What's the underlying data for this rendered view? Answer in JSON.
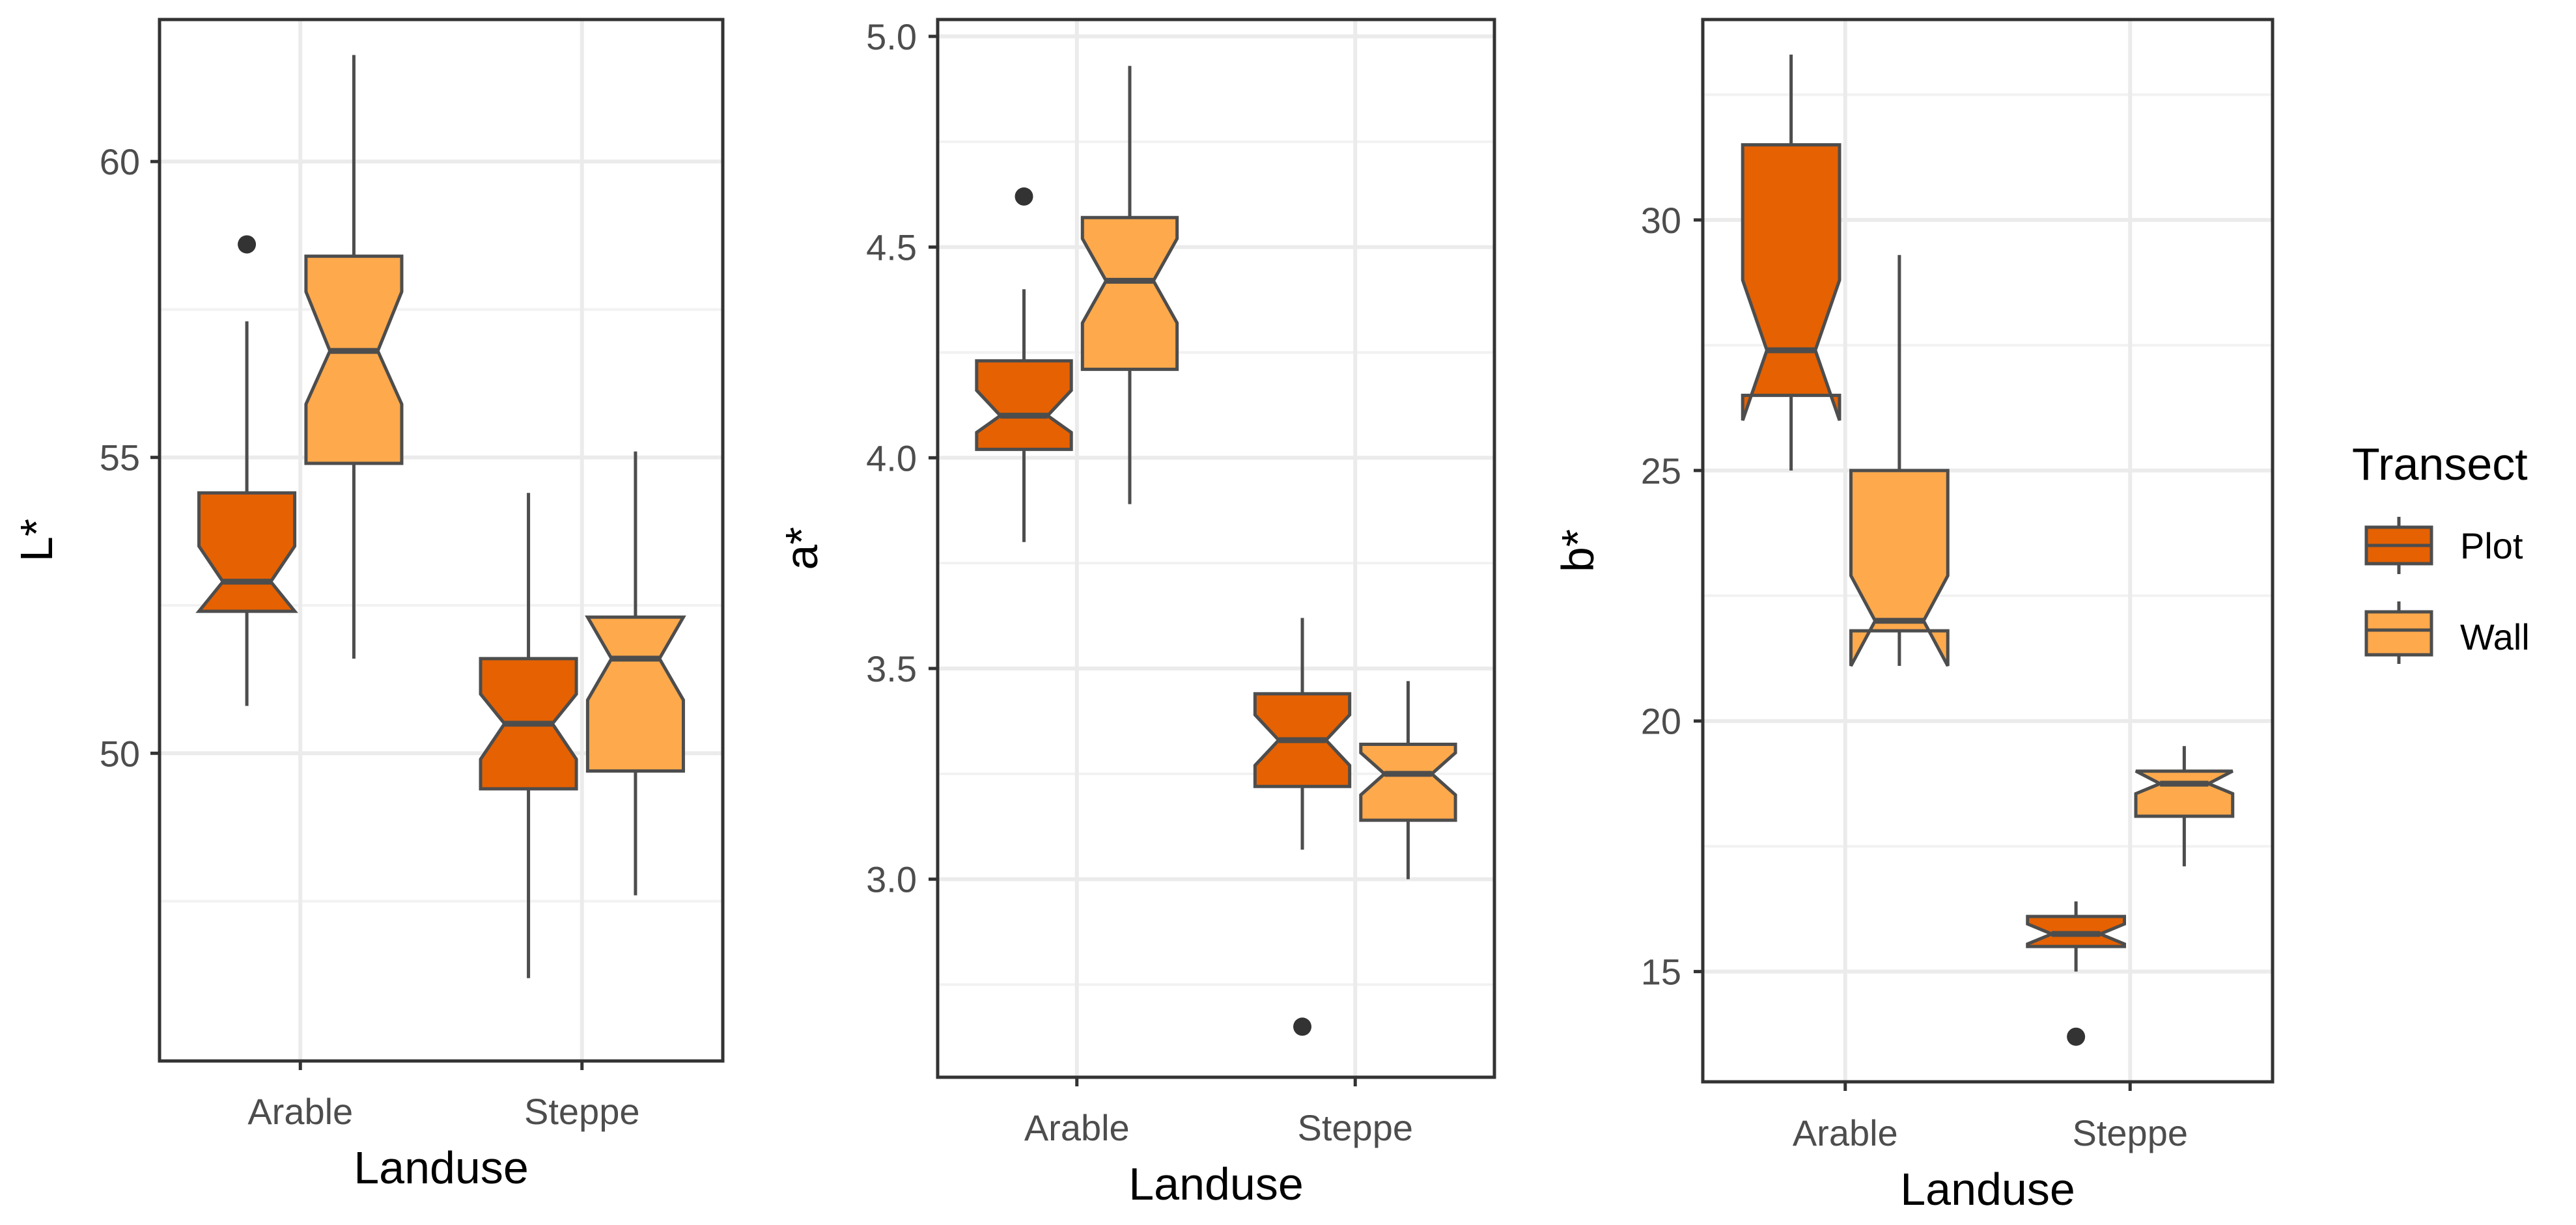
{
  "chart_data": [
    {
      "type": "boxplot",
      "notched": true,
      "xlabel": "Landuse",
      "ylabel": "L*",
      "ylim": [
        44.8,
        62.4
      ],
      "yticks": [
        50,
        55,
        60
      ],
      "categories": [
        "Arable",
        "Steppe"
      ],
      "series": [
        {
          "name": "Plot",
          "boxes": [
            {
              "min": 50.8,
              "q1": 52.4,
              "median": 52.9,
              "q3": 54.4,
              "max": 57.3,
              "notch_low": 52.4,
              "notch_high": 53.5,
              "outliers": [
                58.6
              ]
            },
            {
              "min": 46.2,
              "q1": 49.4,
              "median": 50.5,
              "q3": 51.6,
              "max": 54.4,
              "notch_low": 49.9,
              "notch_high": 51.0,
              "outliers": []
            }
          ]
        },
        {
          "name": "Wall",
          "boxes": [
            {
              "min": 51.6,
              "q1": 54.9,
              "median": 56.8,
              "q3": 58.4,
              "max": 61.8,
              "notch_low": 55.9,
              "notch_high": 57.8,
              "outliers": []
            },
            {
              "min": 47.6,
              "q1": 49.7,
              "median": 51.6,
              "q3": 52.3,
              "max": 55.1,
              "notch_low": 50.9,
              "notch_high": 52.3,
              "outliers": []
            }
          ]
        }
      ]
    },
    {
      "type": "boxplot",
      "notched": true,
      "xlabel": "Landuse",
      "ylabel": "a*",
      "ylim": [
        2.53,
        5.04
      ],
      "yticks": [
        "3.0",
        "3.5",
        "4.0",
        "4.5",
        "5.0"
      ],
      "categories": [
        "Arable",
        "Steppe"
      ],
      "series": [
        {
          "name": "Plot",
          "boxes": [
            {
              "min": 3.8,
              "q1": 4.02,
              "median": 4.1,
              "q3": 4.23,
              "max": 4.4,
              "notch_low": 4.06,
              "notch_high": 4.16,
              "outliers": [
                4.62
              ]
            },
            {
              "min": 3.07,
              "q1": 3.22,
              "median": 3.33,
              "q3": 3.44,
              "max": 3.62,
              "notch_low": 3.27,
              "notch_high": 3.39,
              "outliers": [
                2.65
              ]
            }
          ]
        },
        {
          "name": "Wall",
          "boxes": [
            {
              "min": 3.89,
              "q1": 4.21,
              "median": 4.42,
              "q3": 4.57,
              "max": 4.93,
              "notch_low": 4.32,
              "notch_high": 4.52,
              "outliers": []
            },
            {
              "min": 3.0,
              "q1": 3.14,
              "median": 3.25,
              "q3": 3.32,
              "max": 3.47,
              "notch_low": 3.2,
              "notch_high": 3.3,
              "outliers": []
            }
          ]
        }
      ]
    },
    {
      "type": "boxplot",
      "notched": true,
      "xlabel": "Landuse",
      "ylabel": "b*",
      "ylim": [
        12.8,
        34.0
      ],
      "yticks": [
        15,
        20,
        25,
        30
      ],
      "categories": [
        "Arable",
        "Steppe"
      ],
      "series": [
        {
          "name": "Plot",
          "boxes": [
            {
              "min": 25.0,
              "q1": 26.5,
              "median": 27.4,
              "q3": 31.5,
              "max": 33.3,
              "notch_low": 26.0,
              "notch_high": 28.8,
              "outliers": []
            },
            {
              "min": 15.0,
              "q1": 15.5,
              "median": 15.75,
              "q3": 16.1,
              "max": 16.4,
              "notch_low": 15.55,
              "notch_high": 15.95,
              "outliers": [
                13.7
              ]
            }
          ]
        },
        {
          "name": "Wall",
          "boxes": [
            {
              "min": 21.1,
              "q1": 21.8,
              "median": 22.0,
              "q3": 25.0,
              "max": 29.3,
              "notch_low": 21.1,
              "notch_high": 22.9,
              "outliers": []
            },
            {
              "min": 17.1,
              "q1": 18.1,
              "median": 18.75,
              "q3": 19.0,
              "max": 19.5,
              "notch_low": 18.55,
              "notch_high": 19.0,
              "outliers": []
            }
          ]
        }
      ]
    }
  ],
  "legend": {
    "title": "Transect",
    "items": [
      {
        "label": "Plot",
        "color": "#E66101"
      },
      {
        "label": "Wall",
        "color": "#FDA94C"
      }
    ]
  }
}
